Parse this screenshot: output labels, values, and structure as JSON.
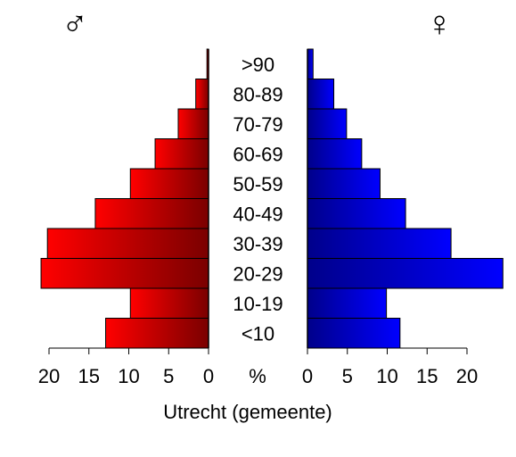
{
  "chart_data": {
    "type": "bar",
    "title": "",
    "xlabel": "Utrecht (gemeente)",
    "center_axis_label": "%",
    "categories": [
      ">90",
      "80-89",
      "70-79",
      "60-69",
      "50-59",
      "40-49",
      "30-39",
      "20-29",
      "10-19",
      "<10"
    ],
    "series": [
      {
        "name": "♂",
        "side": "left",
        "values": [
          0.2,
          1.6,
          3.8,
          6.7,
          9.8,
          14.2,
          20.2,
          21.0,
          9.8,
          12.9
        ]
      },
      {
        "name": "♀",
        "side": "right",
        "values": [
          0.7,
          3.3,
          4.9,
          6.8,
          9.1,
          12.3,
          18.0,
          24.5,
          9.9,
          11.6
        ]
      }
    ],
    "ticks": [
      0,
      5,
      10,
      15,
      20
    ],
    "tick_labels": [
      "0",
      "5",
      "10",
      "15",
      "20"
    ],
    "xlim": [
      0,
      25
    ],
    "colors": {
      "male_light": "#ff0000",
      "male_dark": "#7a0000",
      "female_light": "#0000ff",
      "female_dark": "#00008a"
    },
    "grid": false,
    "legend": "none"
  }
}
